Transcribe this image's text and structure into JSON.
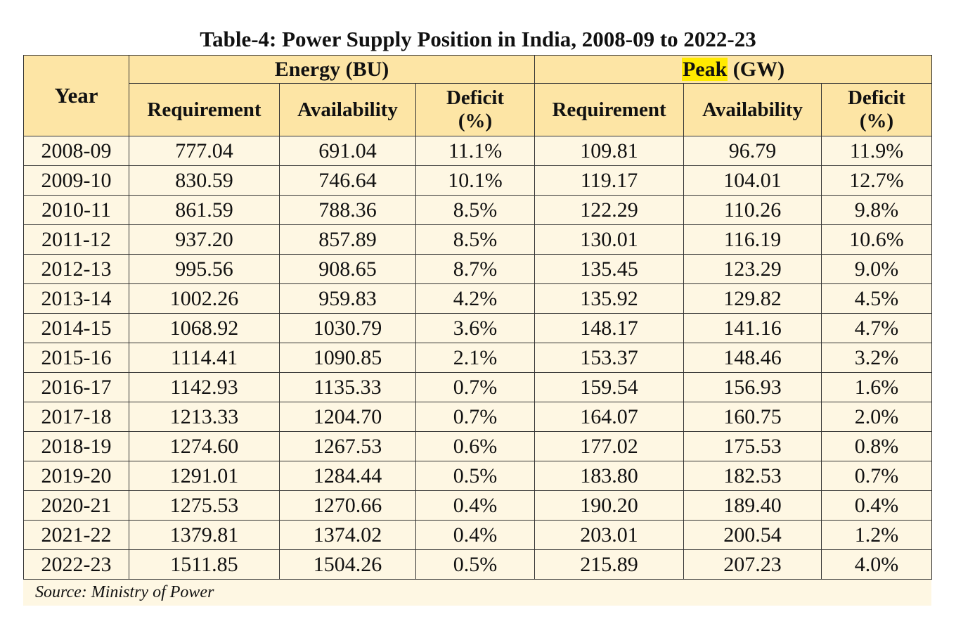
{
  "title": "Table-4: Power Supply Position in India, 2008-09 to 2022-23",
  "header": {
    "year": "Year",
    "energy_group": "Energy (BU)",
    "peak_word": "Peak",
    "peak_unit": " (GW)",
    "energy_cols": [
      "Requirement",
      "Availability",
      "Deficit\n(%)"
    ],
    "peak_cols": [
      "Requirement",
      "Availability",
      "Deficit\n(%)"
    ]
  },
  "highlight_color": "#ffea00",
  "header_color": "#fde5a5",
  "body_color": "#fef7e3",
  "rows": [
    [
      "2008-09",
      "777.04",
      "691.04",
      "11.1%",
      "109.81",
      "96.79",
      "11.9%"
    ],
    [
      "2009-10",
      "830.59",
      "746.64",
      "10.1%",
      "119.17",
      "104.01",
      "12.7%"
    ],
    [
      "2010-11",
      "861.59",
      "788.36",
      "8.5%",
      "122.29",
      "110.26",
      "9.8%"
    ],
    [
      "2011-12",
      "937.20",
      "857.89",
      "8.5%",
      "130.01",
      "116.19",
      "10.6%"
    ],
    [
      "2012-13",
      "995.56",
      "908.65",
      "8.7%",
      "135.45",
      "123.29",
      "9.0%"
    ],
    [
      "2013-14",
      "1002.26",
      "959.83",
      "4.2%",
      "135.92",
      "129.82",
      "4.5%"
    ],
    [
      "2014-15",
      "1068.92",
      "1030.79",
      "3.6%",
      "148.17",
      "141.16",
      "4.7%"
    ],
    [
      "2015-16",
      "1114.41",
      "1090.85",
      "2.1%",
      "153.37",
      "148.46",
      "3.2%"
    ],
    [
      "2016-17",
      "1142.93",
      "1135.33",
      "0.7%",
      "159.54",
      "156.93",
      "1.6%"
    ],
    [
      "2017-18",
      "1213.33",
      "1204.70",
      "0.7%",
      "164.07",
      "160.75",
      "2.0%"
    ],
    [
      "2018-19",
      "1274.60",
      "1267.53",
      "0.6%",
      "177.02",
      "175.53",
      "0.8%"
    ],
    [
      "2019-20",
      "1291.01",
      "1284.44",
      "0.5%",
      "183.80",
      "182.53",
      "0.7%"
    ],
    [
      "2020-21",
      "1275.53",
      "1270.66",
      "0.4%",
      "190.20",
      "189.40",
      "0.4%"
    ],
    [
      "2021-22",
      "1379.81",
      "1374.02",
      "0.4%",
      "203.01",
      "200.54",
      "1.2%"
    ],
    [
      "2022-23",
      "1511.85",
      "1504.26",
      "0.5%",
      "215.89",
      "207.23",
      "4.0%"
    ]
  ],
  "source": "Source: Ministry of Power"
}
